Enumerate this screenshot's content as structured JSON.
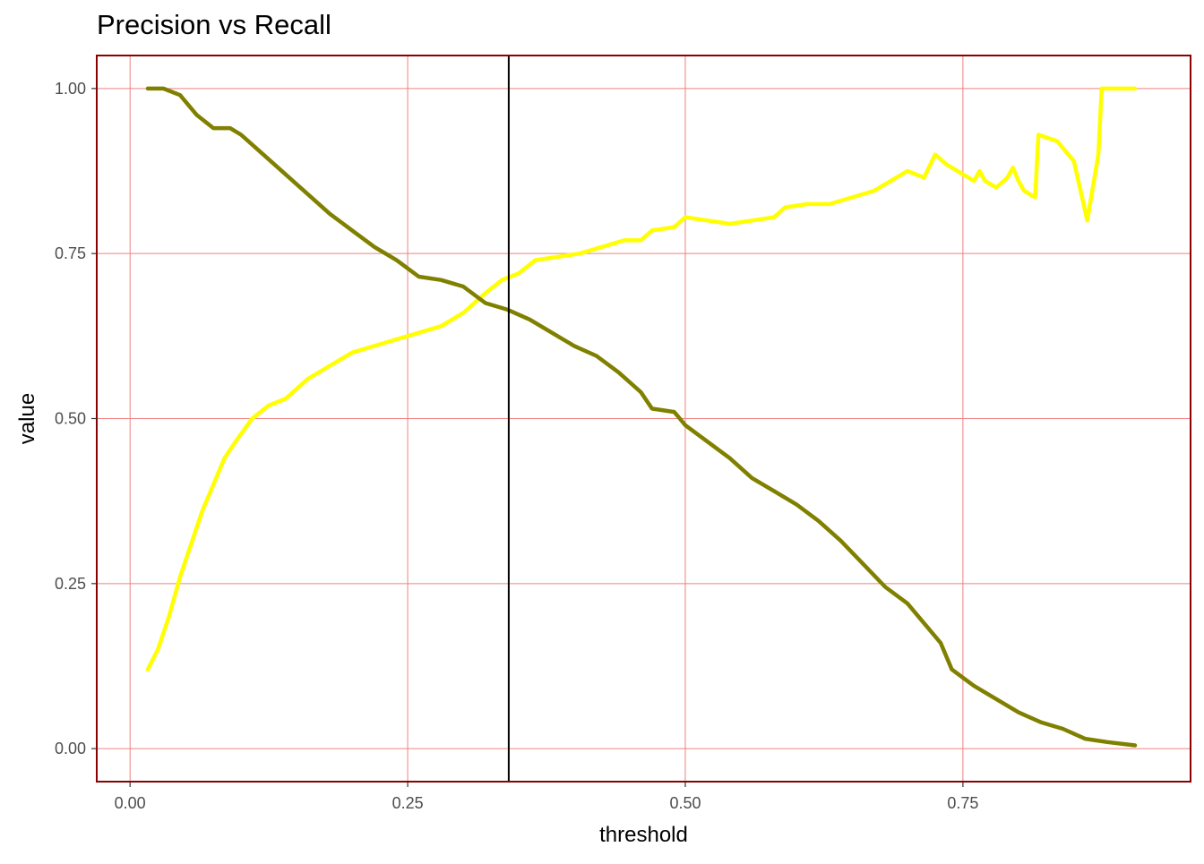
{
  "chart_data": {
    "type": "line",
    "title": "Precision vs Recall",
    "xlabel": "threshold",
    "ylabel": "value",
    "xlim": [
      -0.03,
      0.955
    ],
    "ylim": [
      -0.05,
      1.05
    ],
    "x_ticks": [
      0.0,
      0.25,
      0.5,
      0.75
    ],
    "x_tick_labels": [
      "0.00",
      "0.25",
      "0.50",
      "0.75"
    ],
    "y_ticks": [
      0.0,
      0.25,
      0.5,
      0.75,
      1.0
    ],
    "y_tick_labels": [
      "0.00",
      "0.25",
      "0.50",
      "0.75",
      "1.00"
    ],
    "grid": true,
    "grid_color": "#f08080",
    "panel_border_color": "#8b0000",
    "vline": {
      "x": 0.341,
      "color": "#000000"
    },
    "series": [
      {
        "color": "#ffff00",
        "points": [
          [
            0.016,
            0.12
          ],
          [
            0.025,
            0.15
          ],
          [
            0.035,
            0.2
          ],
          [
            0.045,
            0.26
          ],
          [
            0.055,
            0.31
          ],
          [
            0.065,
            0.36
          ],
          [
            0.075,
            0.4
          ],
          [
            0.085,
            0.44
          ],
          [
            0.095,
            0.465
          ],
          [
            0.11,
            0.5
          ],
          [
            0.125,
            0.52
          ],
          [
            0.14,
            0.53
          ],
          [
            0.16,
            0.56
          ],
          [
            0.18,
            0.58
          ],
          [
            0.2,
            0.6
          ],
          [
            0.22,
            0.61
          ],
          [
            0.24,
            0.62
          ],
          [
            0.26,
            0.63
          ],
          [
            0.28,
            0.64
          ],
          [
            0.3,
            0.66
          ],
          [
            0.32,
            0.69
          ],
          [
            0.335,
            0.71
          ],
          [
            0.35,
            0.72
          ],
          [
            0.365,
            0.74
          ],
          [
            0.385,
            0.745
          ],
          [
            0.405,
            0.75
          ],
          [
            0.425,
            0.76
          ],
          [
            0.445,
            0.77
          ],
          [
            0.46,
            0.77
          ],
          [
            0.47,
            0.785
          ],
          [
            0.49,
            0.79
          ],
          [
            0.5,
            0.805
          ],
          [
            0.52,
            0.8
          ],
          [
            0.54,
            0.795
          ],
          [
            0.56,
            0.8
          ],
          [
            0.58,
            0.805
          ],
          [
            0.59,
            0.82
          ],
          [
            0.61,
            0.825
          ],
          [
            0.63,
            0.825
          ],
          [
            0.65,
            0.835
          ],
          [
            0.67,
            0.845
          ],
          [
            0.69,
            0.865
          ],
          [
            0.7,
            0.875
          ],
          [
            0.715,
            0.865
          ],
          [
            0.725,
            0.9
          ],
          [
            0.735,
            0.885
          ],
          [
            0.75,
            0.87
          ],
          [
            0.76,
            0.86
          ],
          [
            0.765,
            0.875
          ],
          [
            0.77,
            0.86
          ],
          [
            0.78,
            0.85
          ],
          [
            0.79,
            0.865
          ],
          [
            0.795,
            0.88
          ],
          [
            0.8,
            0.86
          ],
          [
            0.805,
            0.845
          ],
          [
            0.815,
            0.835
          ],
          [
            0.818,
            0.93
          ],
          [
            0.835,
            0.92
          ],
          [
            0.85,
            0.89
          ],
          [
            0.862,
            0.8
          ],
          [
            0.872,
            0.9
          ],
          [
            0.875,
            1.0
          ],
          [
            0.905,
            1.0
          ]
        ]
      },
      {
        "color": "#808000",
        "points": [
          [
            0.016,
            1.0
          ],
          [
            0.03,
            1.0
          ],
          [
            0.045,
            0.99
          ],
          [
            0.06,
            0.96
          ],
          [
            0.075,
            0.94
          ],
          [
            0.09,
            0.94
          ],
          [
            0.1,
            0.93
          ],
          [
            0.12,
            0.9
          ],
          [
            0.14,
            0.87
          ],
          [
            0.16,
            0.84
          ],
          [
            0.18,
            0.81
          ],
          [
            0.2,
            0.785
          ],
          [
            0.22,
            0.76
          ],
          [
            0.24,
            0.74
          ],
          [
            0.26,
            0.715
          ],
          [
            0.28,
            0.71
          ],
          [
            0.3,
            0.7
          ],
          [
            0.32,
            0.675
          ],
          [
            0.34,
            0.665
          ],
          [
            0.36,
            0.65
          ],
          [
            0.38,
            0.63
          ],
          [
            0.4,
            0.61
          ],
          [
            0.42,
            0.595
          ],
          [
            0.44,
            0.57
          ],
          [
            0.46,
            0.54
          ],
          [
            0.47,
            0.515
          ],
          [
            0.49,
            0.51
          ],
          [
            0.5,
            0.49
          ],
          [
            0.52,
            0.465
          ],
          [
            0.54,
            0.44
          ],
          [
            0.56,
            0.41
          ],
          [
            0.58,
            0.39
          ],
          [
            0.6,
            0.37
          ],
          [
            0.62,
            0.345
          ],
          [
            0.64,
            0.315
          ],
          [
            0.66,
            0.28
          ],
          [
            0.68,
            0.245
          ],
          [
            0.7,
            0.22
          ],
          [
            0.72,
            0.18
          ],
          [
            0.73,
            0.16
          ],
          [
            0.74,
            0.12
          ],
          [
            0.76,
            0.095
          ],
          [
            0.78,
            0.075
          ],
          [
            0.8,
            0.055
          ],
          [
            0.82,
            0.04
          ],
          [
            0.84,
            0.03
          ],
          [
            0.86,
            0.015
          ],
          [
            0.88,
            0.01
          ],
          [
            0.905,
            0.005
          ]
        ]
      }
    ]
  }
}
